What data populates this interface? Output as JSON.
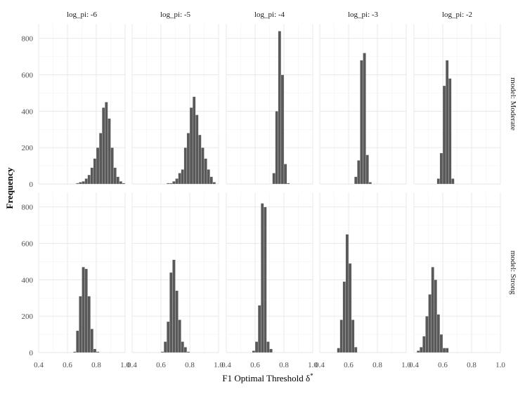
{
  "chart_data": {
    "type": "bar",
    "kind": "faceted-histogram",
    "xlabel": "F1 Optimal Threshold δ*",
    "ylabel": "Frequency",
    "xlim": [
      0.4,
      1.0
    ],
    "ylim": [
      0,
      880
    ],
    "x_ticks": [
      0.4,
      0.6,
      0.8,
      1.0
    ],
    "x_tick_labels": [
      "0.4",
      "0.6",
      "0.8",
      "1.0"
    ],
    "y_ticks": [
      0,
      200,
      400,
      600,
      800
    ],
    "y_tick_labels": [
      "0",
      "200",
      "400",
      "600",
      "800"
    ],
    "grid": true,
    "bar_color": "#595959",
    "columns": [
      "log_pi: -6",
      "log_pi: -5",
      "log_pi: -4",
      "log_pi: -3",
      "log_pi: -2"
    ],
    "rows": [
      "model: Moderate",
      "model: Strong"
    ],
    "panels": [
      {
        "row": 0,
        "col": 0,
        "bin_width": 0.02,
        "bins": [
          [
            0.66,
            5
          ],
          [
            0.68,
            10
          ],
          [
            0.7,
            15
          ],
          [
            0.72,
            30
          ],
          [
            0.74,
            50
          ],
          [
            0.76,
            90
          ],
          [
            0.78,
            140
          ],
          [
            0.8,
            200
          ],
          [
            0.82,
            280
          ],
          [
            0.84,
            420
          ],
          [
            0.86,
            450
          ],
          [
            0.88,
            360
          ],
          [
            0.9,
            200
          ],
          [
            0.92,
            90
          ],
          [
            0.94,
            40
          ],
          [
            0.96,
            15
          ],
          [
            0.98,
            5
          ]
        ]
      },
      {
        "row": 0,
        "col": 1,
        "bin_width": 0.02,
        "bins": [
          [
            0.64,
            5
          ],
          [
            0.66,
            5
          ],
          [
            0.68,
            15
          ],
          [
            0.7,
            30
          ],
          [
            0.72,
            60
          ],
          [
            0.74,
            80
          ],
          [
            0.76,
            200
          ],
          [
            0.78,
            280
          ],
          [
            0.8,
            420
          ],
          [
            0.82,
            480
          ],
          [
            0.84,
            380
          ],
          [
            0.86,
            270
          ],
          [
            0.88,
            200
          ],
          [
            0.9,
            140
          ],
          [
            0.92,
            80
          ],
          [
            0.94,
            40
          ],
          [
            0.96,
            10
          ]
        ]
      },
      {
        "row": 0,
        "col": 2,
        "bin_width": 0.02,
        "bins": [
          [
            0.72,
            60
          ],
          [
            0.74,
            400
          ],
          [
            0.76,
            840
          ],
          [
            0.78,
            600
          ],
          [
            0.8,
            110
          ],
          [
            0.82,
            5
          ]
        ]
      },
      {
        "row": 0,
        "col": 3,
        "bin_width": 0.02,
        "bins": [
          [
            0.64,
            40
          ],
          [
            0.66,
            130
          ],
          [
            0.68,
            680
          ],
          [
            0.7,
            720
          ],
          [
            0.72,
            160
          ],
          [
            0.74,
            10
          ]
        ]
      },
      {
        "row": 0,
        "col": 4,
        "bin_width": 0.02,
        "bins": [
          [
            0.56,
            30
          ],
          [
            0.58,
            170
          ],
          [
            0.6,
            540
          ],
          [
            0.62,
            680
          ],
          [
            0.64,
            580
          ],
          [
            0.66,
            30
          ]
        ]
      },
      {
        "row": 1,
        "col": 0,
        "bin_width": 0.02,
        "bins": [
          [
            0.64,
            5
          ],
          [
            0.66,
            120
          ],
          [
            0.68,
            310
          ],
          [
            0.7,
            470
          ],
          [
            0.72,
            460
          ],
          [
            0.74,
            310
          ],
          [
            0.76,
            130
          ],
          [
            0.78,
            20
          ],
          [
            0.8,
            5
          ]
        ]
      },
      {
        "row": 1,
        "col": 1,
        "bin_width": 0.02,
        "bins": [
          [
            0.6,
            5
          ],
          [
            0.62,
            60
          ],
          [
            0.64,
            170
          ],
          [
            0.66,
            440
          ],
          [
            0.68,
            510
          ],
          [
            0.7,
            340
          ],
          [
            0.72,
            180
          ],
          [
            0.74,
            60
          ],
          [
            0.76,
            30
          ],
          [
            0.78,
            5
          ]
        ]
      },
      {
        "row": 1,
        "col": 2,
        "bin_width": 0.02,
        "bins": [
          [
            0.58,
            10
          ],
          [
            0.6,
            60
          ],
          [
            0.62,
            260
          ],
          [
            0.64,
            820
          ],
          [
            0.66,
            800
          ],
          [
            0.68,
            60
          ],
          [
            0.7,
            20
          ]
        ]
      },
      {
        "row": 1,
        "col": 3,
        "bin_width": 0.02,
        "bins": [
          [
            0.52,
            25
          ],
          [
            0.54,
            180
          ],
          [
            0.56,
            390
          ],
          [
            0.58,
            650
          ],
          [
            0.6,
            490
          ],
          [
            0.62,
            180
          ],
          [
            0.64,
            30
          ]
        ]
      },
      {
        "row": 1,
        "col": 4,
        "bin_width": 0.02,
        "bins": [
          [
            0.42,
            10
          ],
          [
            0.44,
            30
          ],
          [
            0.46,
            90
          ],
          [
            0.48,
            200
          ],
          [
            0.5,
            320
          ],
          [
            0.52,
            470
          ],
          [
            0.54,
            400
          ],
          [
            0.56,
            210
          ],
          [
            0.58,
            100
          ],
          [
            0.6,
            25
          ],
          [
            0.62,
            25
          ]
        ]
      }
    ]
  }
}
